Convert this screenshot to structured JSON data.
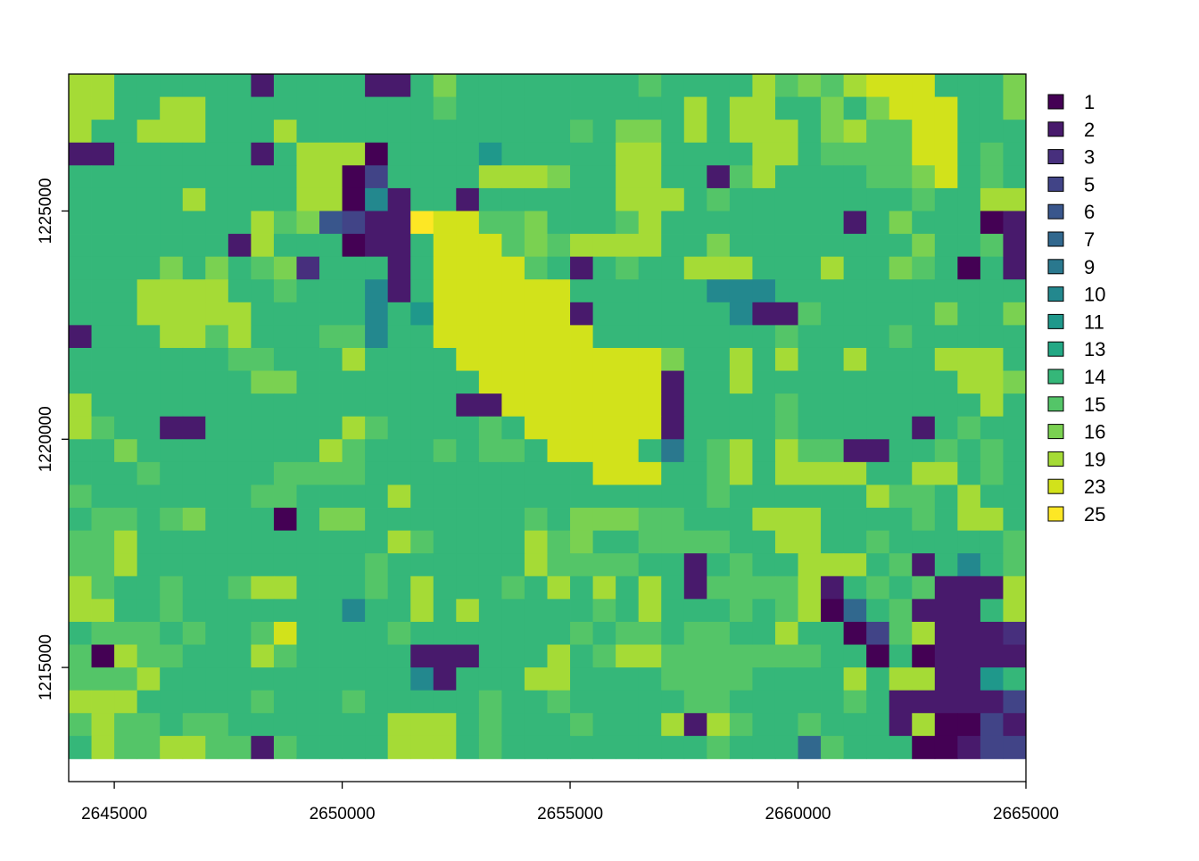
{
  "chart_data": {
    "type": "raster",
    "xlim": [
      2644000,
      2665000
    ],
    "ylim": [
      1212500,
      1228000
    ],
    "xticks": [
      2645000,
      2650000,
      2655000,
      2660000,
      2665000
    ],
    "yticks": [
      1215000,
      1220000,
      1225000
    ],
    "raster_extent": {
      "x": [
        2644000,
        2665000
      ],
      "y": [
        1213000,
        1228000
      ]
    },
    "legend_values": [
      1,
      2,
      3,
      5,
      6,
      7,
      9,
      10,
      11,
      13,
      14,
      15,
      16,
      19,
      23,
      25
    ],
    "colors": [
      "#440154",
      "#481A6C",
      "#472F7D",
      "#414487",
      "#39568C",
      "#31688E",
      "#2A788E",
      "#23888E",
      "#1F988B",
      "#22A884",
      "#35B779",
      "#54C568",
      "#7AD151",
      "#A5DB36",
      "#D2E21B",
      "#FDE725"
    ],
    "values": [
      [
        19,
        19,
        14,
        14,
        14,
        14,
        14,
        14,
        2,
        14,
        14,
        14,
        14,
        2,
        2,
        14,
        16,
        14,
        14,
        14,
        14,
        14,
        14,
        14,
        14,
        15,
        14,
        14,
        14,
        14,
        19,
        15,
        16,
        15,
        19,
        23,
        23,
        23,
        14,
        14,
        14,
        16
      ],
      [
        19,
        19,
        14,
        14,
        19,
        19,
        14,
        14,
        14,
        14,
        14,
        14,
        14,
        14,
        14,
        14,
        15,
        14,
        14,
        14,
        14,
        14,
        14,
        14,
        14,
        14,
        14,
        19,
        14,
        19,
        19,
        14,
        14,
        16,
        14,
        16,
        23,
        23,
        23,
        14,
        14,
        16
      ],
      [
        19,
        14,
        14,
        19,
        19,
        19,
        14,
        14,
        14,
        19,
        14,
        14,
        14,
        14,
        14,
        14,
        14,
        14,
        14,
        14,
        14,
        14,
        15,
        14,
        16,
        16,
        14,
        19,
        14,
        19,
        19,
        19,
        14,
        16,
        19,
        15,
        15,
        23,
        23,
        14,
        14,
        14
      ],
      [
        2,
        2,
        14,
        14,
        14,
        14,
        14,
        14,
        2,
        14,
        19,
        19,
        19,
        1,
        14,
        14,
        14,
        14,
        11,
        14,
        14,
        14,
        14,
        14,
        19,
        19,
        14,
        14,
        14,
        14,
        19,
        19,
        14,
        15,
        15,
        15,
        15,
        23,
        23,
        14,
        15,
        14
      ],
      [
        14,
        14,
        14,
        14,
        14,
        14,
        14,
        14,
        14,
        14,
        19,
        19,
        1,
        5,
        14,
        14,
        14,
        14,
        19,
        19,
        19,
        16,
        14,
        14,
        19,
        19,
        14,
        14,
        2,
        15,
        19,
        14,
        14,
        14,
        14,
        15,
        15,
        16,
        23,
        14,
        15,
        14
      ],
      [
        14,
        14,
        14,
        14,
        14,
        19,
        14,
        14,
        14,
        14,
        19,
        19,
        1,
        10,
        2,
        14,
        14,
        2,
        14,
        14,
        14,
        14,
        14,
        14,
        19,
        19,
        19,
        14,
        15,
        14,
        14,
        14,
        14,
        14,
        14,
        14,
        14,
        15,
        14,
        14,
        19,
        19
      ],
      [
        14,
        14,
        14,
        14,
        14,
        14,
        14,
        14,
        19,
        15,
        16,
        6,
        5,
        2,
        2,
        25,
        23,
        23,
        15,
        15,
        16,
        14,
        14,
        14,
        15,
        19,
        14,
        14,
        14,
        14,
        14,
        14,
        14,
        14,
        2,
        14,
        16,
        14,
        14,
        14,
        1,
        2
      ],
      [
        14,
        14,
        14,
        14,
        14,
        14,
        14,
        2,
        19,
        14,
        14,
        14,
        1,
        2,
        2,
        14,
        23,
        23,
        23,
        15,
        16,
        15,
        19,
        19,
        19,
        19,
        14,
        14,
        16,
        14,
        14,
        14,
        14,
        14,
        14,
        14,
        14,
        16,
        14,
        14,
        15,
        2
      ],
      [
        14,
        14,
        14,
        14,
        16,
        14,
        16,
        14,
        15,
        16,
        3,
        14,
        14,
        14,
        2,
        14,
        23,
        23,
        23,
        23,
        15,
        14,
        2,
        14,
        15,
        14,
        14,
        19,
        19,
        19,
        14,
        14,
        14,
        19,
        14,
        14,
        16,
        15,
        14,
        1,
        14,
        2
      ],
      [
        14,
        14,
        14,
        19,
        19,
        19,
        19,
        14,
        14,
        15,
        14,
        14,
        14,
        10,
        2,
        14,
        23,
        23,
        23,
        23,
        23,
        23,
        14,
        14,
        14,
        14,
        14,
        14,
        10,
        10,
        10,
        14,
        14,
        14,
        14,
        14,
        14,
        14,
        14,
        14,
        14,
        14
      ],
      [
        14,
        14,
        14,
        19,
        19,
        19,
        19,
        19,
        14,
        14,
        14,
        14,
        14,
        10,
        14,
        11,
        23,
        23,
        23,
        23,
        23,
        23,
        2,
        14,
        14,
        14,
        14,
        14,
        14,
        10,
        2,
        2,
        15,
        14,
        14,
        14,
        14,
        14,
        16,
        14,
        14,
        16
      ],
      [
        2,
        14,
        14,
        14,
        19,
        19,
        15,
        19,
        14,
        14,
        14,
        15,
        15,
        10,
        14,
        14,
        23,
        23,
        23,
        23,
        23,
        23,
        23,
        14,
        14,
        14,
        14,
        14,
        14,
        14,
        14,
        15,
        14,
        14,
        14,
        14,
        15,
        14,
        14,
        14,
        14,
        14
      ],
      [
        14,
        14,
        14,
        14,
        14,
        14,
        14,
        15,
        15,
        14,
        14,
        14,
        19,
        14,
        14,
        14,
        14,
        23,
        23,
        23,
        23,
        23,
        23,
        23,
        23,
        23,
        16,
        14,
        14,
        19,
        14,
        19,
        14,
        14,
        19,
        14,
        14,
        14,
        19,
        19,
        19,
        14
      ],
      [
        14,
        14,
        14,
        14,
        14,
        14,
        14,
        14,
        16,
        16,
        14,
        14,
        14,
        14,
        14,
        14,
        14,
        14,
        23,
        23,
        23,
        23,
        23,
        23,
        23,
        23,
        2,
        14,
        14,
        19,
        14,
        14,
        14,
        14,
        14,
        14,
        14,
        14,
        14,
        19,
        19,
        16
      ],
      [
        19,
        14,
        14,
        14,
        14,
        14,
        14,
        14,
        14,
        14,
        14,
        14,
        14,
        14,
        14,
        14,
        14,
        2,
        2,
        23,
        23,
        23,
        23,
        23,
        23,
        23,
        2,
        14,
        14,
        14,
        14,
        15,
        14,
        14,
        14,
        14,
        14,
        14,
        14,
        14,
        19,
        14
      ],
      [
        19,
        15,
        14,
        14,
        2,
        2,
        14,
        14,
        14,
        14,
        14,
        14,
        19,
        15,
        14,
        14,
        14,
        14,
        15,
        14,
        23,
        23,
        23,
        23,
        23,
        23,
        2,
        14,
        14,
        14,
        14,
        15,
        14,
        14,
        14,
        14,
        14,
        2,
        14,
        15,
        14,
        14
      ],
      [
        14,
        14,
        16,
        14,
        14,
        14,
        14,
        14,
        14,
        14,
        14,
        19,
        15,
        14,
        14,
        14,
        15,
        14,
        15,
        15,
        14,
        23,
        23,
        23,
        23,
        14,
        9,
        14,
        15,
        19,
        14,
        19,
        15,
        15,
        2,
        2,
        14,
        14,
        15,
        14,
        15,
        14
      ],
      [
        14,
        14,
        14,
        15,
        14,
        14,
        14,
        14,
        14,
        15,
        15,
        15,
        15,
        14,
        14,
        14,
        14,
        14,
        14,
        14,
        14,
        14,
        14,
        23,
        23,
        23,
        14,
        14,
        15,
        19,
        14,
        19,
        19,
        19,
        19,
        14,
        14,
        19,
        19,
        14,
        15,
        14
      ],
      [
        15,
        14,
        14,
        14,
        14,
        14,
        14,
        14,
        15,
        15,
        14,
        14,
        14,
        14,
        19,
        14,
        14,
        14,
        14,
        14,
        14,
        14,
        14,
        14,
        14,
        14,
        14,
        14,
        15,
        14,
        14,
        14,
        14,
        14,
        14,
        19,
        15,
        15,
        14,
        19,
        14,
        14
      ],
      [
        14,
        15,
        15,
        14,
        15,
        16,
        14,
        14,
        14,
        1,
        14,
        16,
        16,
        14,
        14,
        14,
        14,
        14,
        14,
        14,
        15,
        14,
        16,
        16,
        16,
        15,
        15,
        14,
        14,
        14,
        19,
        19,
        19,
        14,
        14,
        14,
        14,
        15,
        14,
        19,
        19,
        14
      ],
      [
        15,
        15,
        19,
        14,
        14,
        14,
        14,
        14,
        14,
        14,
        14,
        14,
        14,
        14,
        19,
        15,
        14,
        14,
        14,
        14,
        19,
        15,
        16,
        14,
        14,
        15,
        15,
        15,
        15,
        14,
        14,
        19,
        19,
        14,
        14,
        15,
        14,
        14,
        14,
        14,
        14,
        15
      ],
      [
        15,
        15,
        19,
        14,
        14,
        14,
        14,
        14,
        14,
        14,
        14,
        14,
        14,
        15,
        14,
        14,
        14,
        14,
        14,
        14,
        19,
        15,
        15,
        15,
        15,
        14,
        14,
        2,
        14,
        15,
        14,
        14,
        19,
        19,
        19,
        14,
        15,
        2,
        14,
        10,
        14,
        15
      ],
      [
        19,
        15,
        14,
        14,
        15,
        14,
        14,
        15,
        19,
        19,
        14,
        14,
        14,
        15,
        14,
        19,
        14,
        14,
        14,
        15,
        14,
        19,
        14,
        19,
        14,
        19,
        14,
        2,
        15,
        15,
        15,
        15,
        19,
        2,
        14,
        15,
        14,
        15,
        2,
        2,
        2,
        19
      ],
      [
        19,
        19,
        14,
        14,
        15,
        14,
        14,
        14,
        14,
        14,
        14,
        14,
        10,
        14,
        14,
        19,
        14,
        19,
        14,
        14,
        14,
        14,
        14,
        15,
        14,
        19,
        14,
        14,
        14,
        15,
        14,
        15,
        19,
        1,
        7,
        14,
        15,
        2,
        2,
        2,
        14,
        19
      ],
      [
        14,
        15,
        15,
        15,
        14,
        15,
        14,
        14,
        15,
        23,
        14,
        14,
        14,
        14,
        15,
        14,
        14,
        14,
        14,
        14,
        14,
        14,
        15,
        14,
        15,
        15,
        14,
        15,
        15,
        14,
        14,
        19,
        14,
        14,
        1,
        5,
        15,
        19,
        2,
        2,
        2,
        3
      ],
      [
        15,
        1,
        19,
        15,
        15,
        14,
        14,
        14,
        19,
        15,
        14,
        14,
        14,
        14,
        14,
        2,
        2,
        2,
        14,
        14,
        14,
        19,
        14,
        15,
        19,
        19,
        15,
        15,
        15,
        15,
        15,
        15,
        15,
        14,
        14,
        1,
        14,
        1,
        2,
        2,
        2,
        2
      ],
      [
        15,
        15,
        15,
        19,
        14,
        14,
        14,
        14,
        14,
        14,
        14,
        14,
        14,
        14,
        14,
        10,
        2,
        14,
        14,
        14,
        19,
        19,
        14,
        14,
        14,
        14,
        15,
        15,
        15,
        15,
        14,
        14,
        14,
        14,
        19,
        14,
        19,
        19,
        2,
        2,
        11,
        14
      ],
      [
        19,
        19,
        19,
        14,
        14,
        14,
        14,
        14,
        15,
        14,
        14,
        14,
        15,
        14,
        14,
        14,
        14,
        14,
        15,
        14,
        14,
        15,
        14,
        14,
        14,
        14,
        14,
        15,
        15,
        14,
        14,
        14,
        14,
        14,
        15,
        14,
        2,
        2,
        2,
        2,
        2,
        5
      ],
      [
        15,
        19,
        15,
        15,
        14,
        15,
        15,
        14,
        14,
        14,
        14,
        14,
        14,
        14,
        19,
        19,
        19,
        14,
        15,
        14,
        14,
        14,
        15,
        14,
        14,
        14,
        19,
        2,
        19,
        15,
        14,
        14,
        15,
        14,
        14,
        14,
        2,
        19,
        1,
        1,
        5,
        2
      ],
      [
        14,
        19,
        15,
        15,
        19,
        19,
        15,
        15,
        2,
        15,
        14,
        14,
        14,
        14,
        19,
        19,
        19,
        14,
        15,
        14,
        14,
        14,
        14,
        14,
        14,
        14,
        14,
        14,
        15,
        14,
        14,
        14,
        7,
        15,
        14,
        14,
        14,
        1,
        1,
        2,
        5,
        5
      ]
    ]
  }
}
